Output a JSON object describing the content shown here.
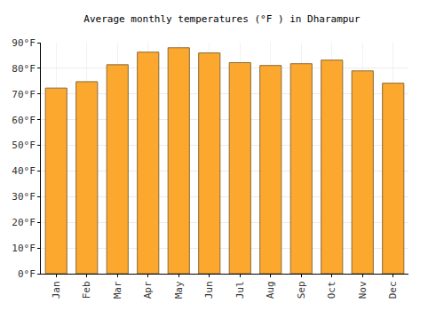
{
  "chart_data": {
    "type": "bar",
    "title": "Average monthly temperatures (°F ) in Dharampur",
    "categories": [
      "Jan",
      "Feb",
      "Mar",
      "Apr",
      "May",
      "Jun",
      "Jul",
      "Aug",
      "Sep",
      "Oct",
      "Nov",
      "Dec"
    ],
    "values": [
      72.3,
      74.8,
      81.4,
      86.3,
      88.0,
      86.0,
      82.2,
      81.1,
      81.8,
      83.2,
      79.0,
      74.2
    ],
    "color": "#fca82e",
    "ylim": [
      0,
      90
    ],
    "yticks": [
      {
        "value": 0,
        "label": "0°F"
      },
      {
        "value": 10,
        "label": "10°F"
      },
      {
        "value": 20,
        "label": "20°F"
      },
      {
        "value": 30,
        "label": "30°F"
      },
      {
        "value": 40,
        "label": "40°F"
      },
      {
        "value": 50,
        "label": "50°F"
      },
      {
        "value": 60,
        "label": "60°F"
      },
      {
        "value": 70,
        "label": "70°F"
      },
      {
        "value": 80,
        "label": "80°F"
      },
      {
        "value": 90,
        "label": "90°F"
      }
    ],
    "grid": true
  }
}
